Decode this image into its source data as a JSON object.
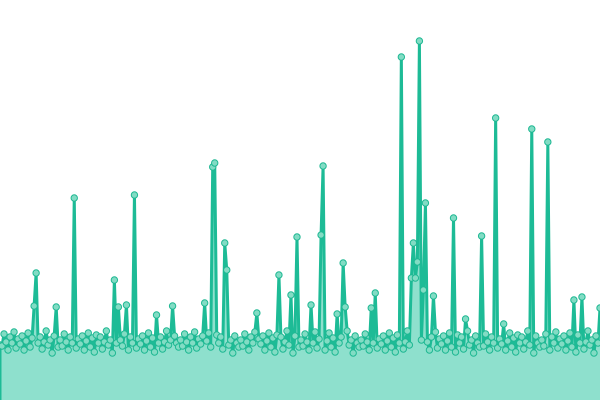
{
  "chart_data": {
    "type": "area",
    "title": "",
    "xlabel": "",
    "ylabel": "",
    "ylim": [
      0,
      400
    ],
    "grid": false,
    "legend": "none",
    "axes_visible": false,
    "markers": true,
    "colors": {
      "line": "#1dbb96",
      "fill": "#8ee0cd",
      "marker_fill": "#82dcc4",
      "marker_stroke": "#1fb893"
    },
    "values": [
      55,
      54,
      66,
      58,
      50,
      63,
      57,
      68,
      52,
      61,
      56,
      64,
      50,
      59,
      67,
      53,
      62,
      94,
      127,
      57,
      63,
      51,
      58,
      69,
      55,
      60,
      47,
      64,
      93,
      53,
      60,
      54,
      66,
      58,
      50,
      63,
      57,
      202,
      52,
      61,
      56,
      64,
      50,
      59,
      67,
      53,
      62,
      48,
      65,
      57,
      63,
      51,
      58,
      69,
      55,
      60,
      47,
      120,
      57,
      93,
      60,
      54,
      66,
      95,
      50,
      63,
      57,
      205,
      52,
      61,
      56,
      64,
      50,
      59,
      67,
      53,
      62,
      48,
      85,
      57,
      63,
      51,
      58,
      69,
      55,
      60,
      94,
      64,
      57,
      53,
      60,
      54,
      66,
      58,
      50,
      63,
      57,
      68,
      52,
      61,
      56,
      64,
      97,
      59,
      67,
      53,
      233,
      237,
      65,
      57,
      63,
      51,
      157,
      130,
      55,
      60,
      47,
      64,
      57,
      53,
      60,
      54,
      66,
      58,
      50,
      63,
      57,
      68,
      87,
      61,
      56,
      64,
      50,
      59,
      67,
      53,
      62,
      48,
      65,
      125,
      63,
      51,
      58,
      69,
      55,
      105,
      47,
      64,
      163,
      53,
      60,
      54,
      66,
      58,
      50,
      95,
      57,
      68,
      52,
      61,
      165,
      234,
      50,
      59,
      67,
      53,
      62,
      48,
      86,
      57,
      63,
      137,
      93,
      69,
      55,
      60,
      47,
      64,
      57,
      53,
      60,
      54,
      66,
      58,
      50,
      92,
      57,
      107,
      52,
      61,
      56,
      64,
      50,
      59,
      67,
      53,
      62,
      48,
      65,
      57,
      343,
      51,
      58,
      69,
      55,
      122,
      157,
      122,
      138,
      359,
      60,
      110,
      197,
      58,
      50,
      63,
      104,
      68,
      52,
      61,
      56,
      64,
      50,
      59,
      67,
      53,
      182,
      48,
      65,
      57,
      63,
      51,
      81,
      69,
      55,
      60,
      47,
      64,
      57,
      53,
      164,
      54,
      66,
      58,
      50,
      63,
      57,
      282,
      52,
      61,
      56,
      76,
      50,
      59,
      67,
      53,
      62,
      48,
      65,
      57,
      63,
      51,
      58,
      69,
      55,
      271,
      47,
      64,
      57,
      53,
      60,
      54,
      66,
      258,
      50,
      63,
      57,
      68,
      52,
      61,
      56,
      64,
      50,
      59,
      67,
      53,
      100,
      48,
      65,
      57,
      103,
      51,
      58,
      69,
      55,
      60,
      47,
      64,
      57,
      92
    ]
  }
}
